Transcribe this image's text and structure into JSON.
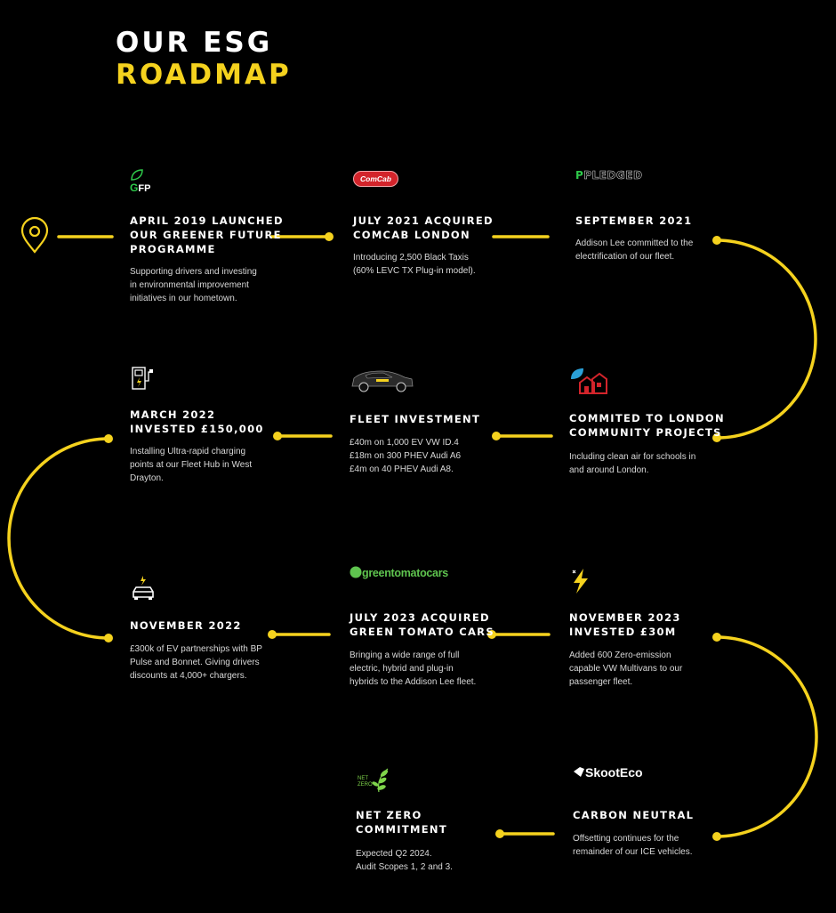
{
  "header": {
    "title_line1": "OUR ESG",
    "title_line2": "ROADMAP"
  },
  "colors": {
    "accent": "#f5d21e",
    "background": "#000000",
    "text": "#ffffff",
    "body_text": "#d8d8d8"
  },
  "milestones": [
    {
      "icon": "gfp-logo",
      "logo_text": "FP",
      "title": "APRIL 2019 LAUNCHED OUR GREENER FUTURE PROGRAMME",
      "body": "Supporting drivers and investing in environmental improvement initiatives in our hometown."
    },
    {
      "icon": "comcab-logo",
      "logo_text": "ComCab",
      "title": "JULY 2021 ACQUIRED COMCAB LONDON",
      "body": "Introducing 2,500 Black Taxis (60% LEVC TX Plug-in model)."
    },
    {
      "icon": "pledged-logo",
      "logo_text": "PLEDGED",
      "title": "SEPTEMBER 2021",
      "body": "Addison Lee committed to the electrification of our fleet."
    },
    {
      "icon": "ev-charger-icon",
      "logo_text": "",
      "title": "MARCH 2022 INVESTED £150,000",
      "body": "Installing Ultra-rapid charging points at our Fleet Hub in West Drayton."
    },
    {
      "icon": "suv-car-icon",
      "logo_text": "",
      "title": "FLEET INVESTMENT",
      "body": "£40m on 1,000 EV VW ID.4\n£18m on 300 PHEV Audi A6\n£4m on 40 PHEV Audi A8."
    },
    {
      "icon": "community-houses-icon",
      "logo_text": "",
      "title": "COMMITED TO LONDON COMMUNITY PROJECTS",
      "body": "Including clean air for schools in and around London."
    },
    {
      "icon": "electric-car-icon",
      "logo_text": "",
      "title": "NOVEMBER 2022",
      "body": "£300k of EV partnerships with BP Pulse and Bonnet. Giving drivers discounts at 4,000+ chargers."
    },
    {
      "icon": "greentomatocars-logo",
      "logo_text": "greentomatocars",
      "title": "JULY 2023 ACQUIRED GREEN TOMATO CARS",
      "body": "Bringing a wide range of full electric, hybrid and plug-in hybrids to the Addison Lee fleet."
    },
    {
      "icon": "lightning-bolt-icon",
      "logo_text": "",
      "title": "NOVEMBER 2023 INVESTED £30M",
      "body": "Added 600 Zero-emission capable VW Multivans to our passenger fleet."
    },
    {
      "icon": "net-zero-logo",
      "logo_text": "NET ZERO",
      "title": "NET ZERO COMMITMENT",
      "body": "Expected Q2 2024.\nAudit Scopes 1, 2 and 3."
    },
    {
      "icon": "skooteco-logo",
      "logo_text": "SkootEco",
      "title": "CARBON NEUTRAL",
      "body": "Offsetting continues for the remainder of our ICE vehicles."
    }
  ]
}
